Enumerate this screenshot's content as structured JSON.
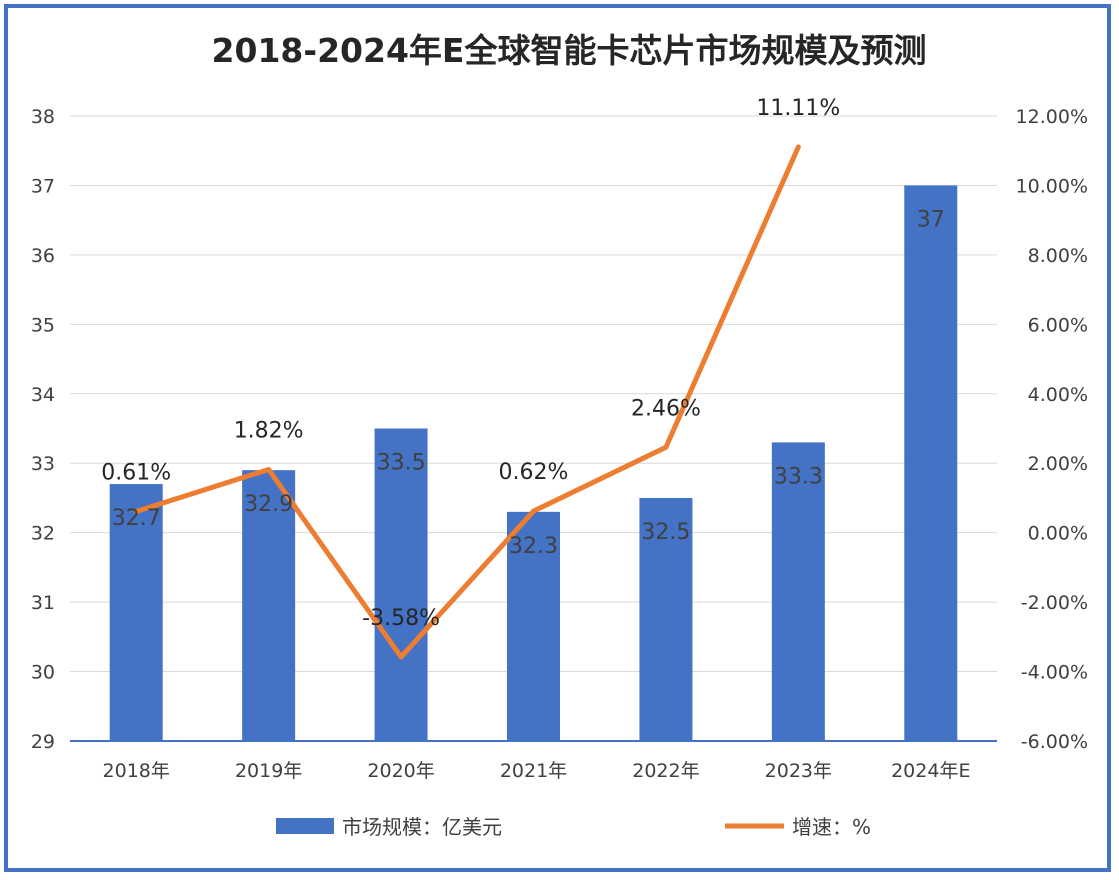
{
  "chart_data": {
    "type": "bar",
    "title": "2018-2024年E全球智能卡芯片市场规模及预测",
    "categories": [
      "2018年",
      "2019年",
      "2020年",
      "2021年",
      "2022年",
      "2023年",
      "2024年E"
    ],
    "series": [
      {
        "name": "市场规模：亿美元",
        "type": "bar",
        "axis": "left",
        "values": [
          32.7,
          32.9,
          33.5,
          32.3,
          32.5,
          33.3,
          37
        ],
        "labels": [
          "32.7",
          "32.9",
          "33.5",
          "32.3",
          "32.5",
          "33.3",
          "37"
        ],
        "color": "#4472c4"
      },
      {
        "name": "增速：%",
        "type": "line",
        "axis": "right",
        "values": [
          0.61,
          1.82,
          -3.58,
          0.62,
          2.46,
          11.11,
          null
        ],
        "labels": [
          "0.61%",
          "1.82%",
          "-3.58%",
          "0.62%",
          "2.46%",
          "11.11%",
          ""
        ],
        "color": "#ed7d31"
      }
    ],
    "y_left": {
      "range": [
        29,
        38
      ],
      "ticks": [
        29,
        30,
        31,
        32,
        33,
        34,
        35,
        36,
        37,
        38
      ],
      "tick_labels": [
        "29",
        "30",
        "31",
        "32",
        "33",
        "34",
        "35",
        "36",
        "37",
        "38"
      ]
    },
    "y_right": {
      "range": [
        -6,
        12
      ],
      "ticks": [
        -6,
        -4,
        -2,
        0,
        2,
        4,
        6,
        8,
        10,
        12
      ],
      "tick_labels": [
        "-6.00%",
        "-4.00%",
        "-2.00%",
        "0.00%",
        "2.00%",
        "4.00%",
        "6.00%",
        "8.00%",
        "10.00%",
        "12.00%"
      ]
    },
    "grid": true,
    "legend_position": "bottom"
  },
  "colors": {
    "frame": "#4472c4",
    "grid": "#d9d9d9",
    "axis_line": "#4472c4"
  }
}
